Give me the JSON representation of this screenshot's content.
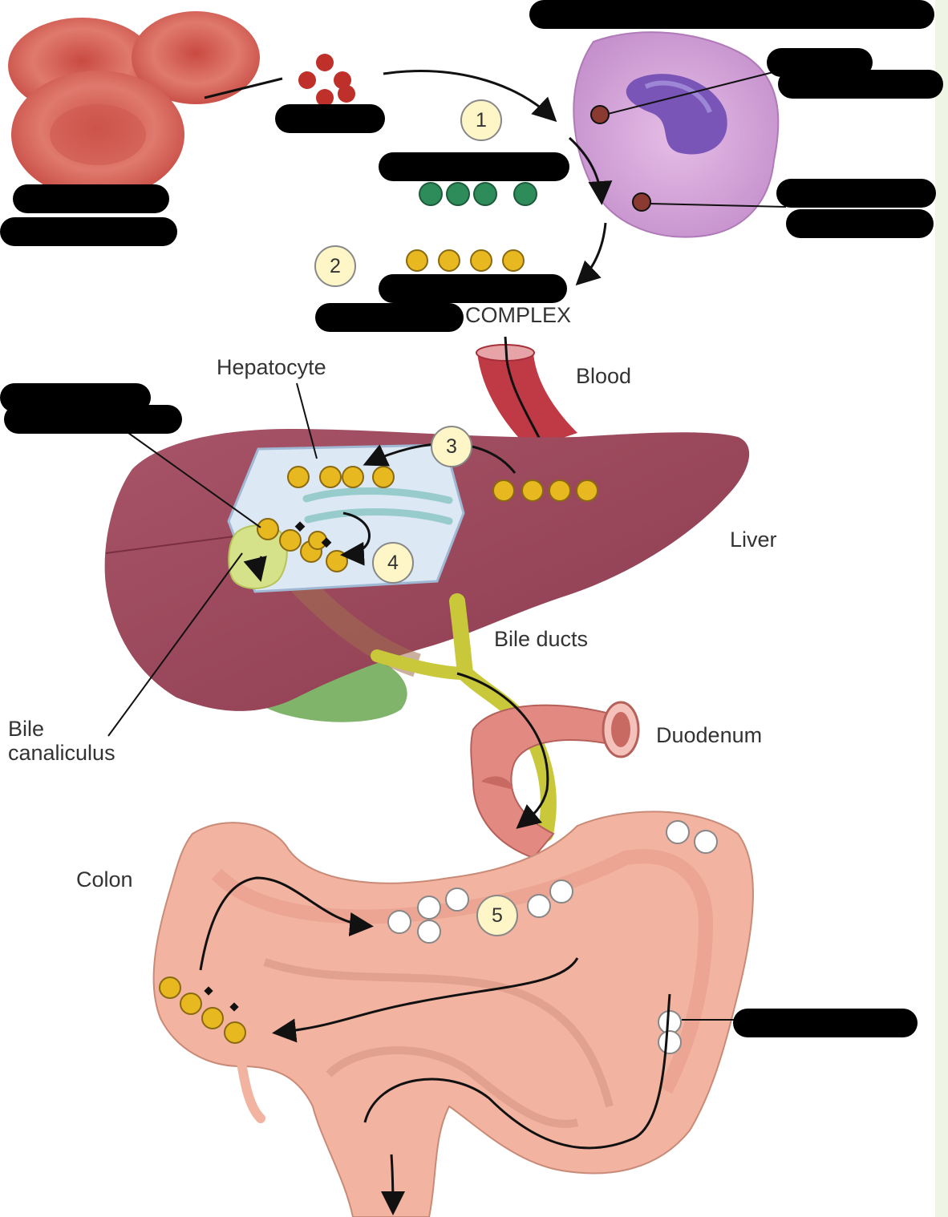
{
  "labels": {
    "complex": "COMPLEX",
    "hepatocyte": "Hepatocyte",
    "blood": "Blood",
    "liver": "Liver",
    "bile_ducts": "Bile ducts",
    "bile_canaliculus_line1": "Bile",
    "bile_canaliculus_line2": "canaliculus",
    "duodenum": "Duodenum",
    "colon": "Colon"
  },
  "steps": [
    "1",
    "2",
    "3",
    "4",
    "5"
  ],
  "colors": {
    "rbc": "#d9645a",
    "heme_molecule": "#c0302a",
    "macrophage": "#d9a6d9",
    "nucleus": "#7a55b8",
    "biliverdin": "#2e8b5a",
    "bilirubin": "#e8b820",
    "liver": "#9e4a5c",
    "bile_duct": "#c8c83a",
    "gallbladder": "#7fb46a",
    "intestine": "#f2b3a0",
    "step_circle": "#fff6c8",
    "redaction": "#000000"
  }
}
